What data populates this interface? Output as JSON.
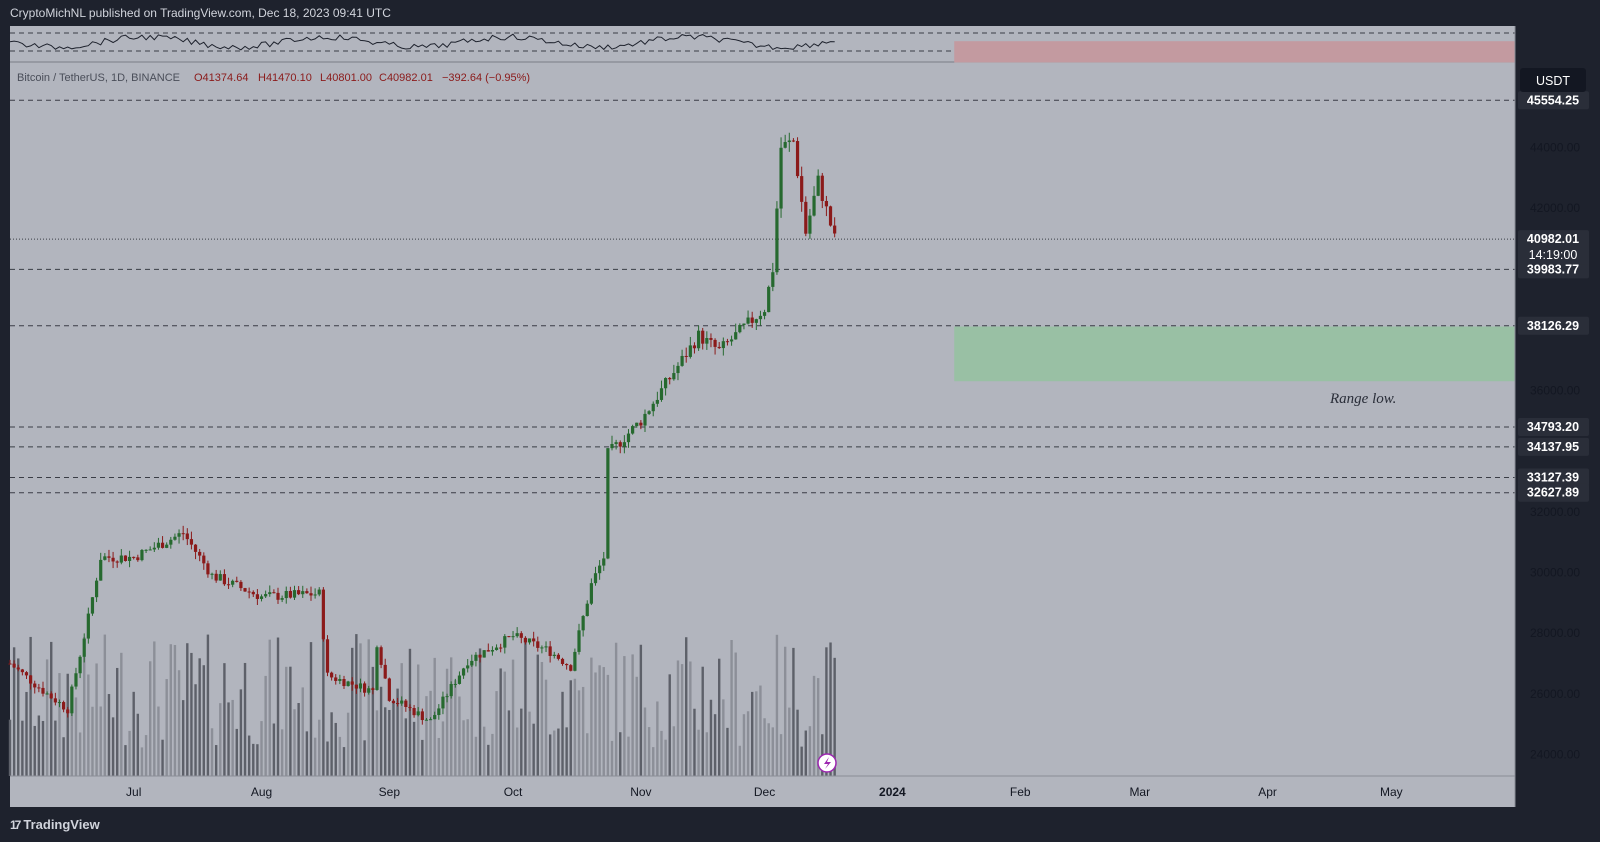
{
  "header": {
    "publish_line": "CryptoMichNL published on TradingView.com, Dec 18, 2023 09:41 UTC"
  },
  "footer": {
    "brand": "TradingView"
  },
  "symbol": {
    "name": "Bitcoin / TetherUS, 1D, BINANCE",
    "open": "O41374.64",
    "high": "H41470.10",
    "low": "L40801.00",
    "close": "C40982.01",
    "change": "−392.64 (−0.95%)"
  },
  "currency_button": "USDT",
  "annotation": "Range low.",
  "colors": {
    "background": "#b2b5be",
    "frame": "#1e222d",
    "up": "#26692f",
    "down": "#8b1a1a",
    "resistance_zone": "#c39aa0",
    "support_zone": "#99c0a4",
    "price_tag": "#2a2e39"
  },
  "chart_data": {
    "type": "candlestick",
    "ylim": [
      23000,
      48000
    ],
    "x_range": [
      "2023-06-01",
      "2024-05-31"
    ],
    "x_tick_labels": [
      {
        "label": "Jul",
        "date": "2023-07-01"
      },
      {
        "label": "Aug",
        "date": "2023-08-01"
      },
      {
        "label": "Sep",
        "date": "2023-09-01"
      },
      {
        "label": "Oct",
        "date": "2023-10-01"
      },
      {
        "label": "Nov",
        "date": "2023-11-01"
      },
      {
        "label": "Dec",
        "date": "2023-12-01"
      },
      {
        "label": "2024",
        "date": "2024-01-01"
      },
      {
        "label": "Feb",
        "date": "2024-02-01"
      },
      {
        "label": "Mar",
        "date": "2024-03-01"
      },
      {
        "label": "Apr",
        "date": "2024-04-01"
      },
      {
        "label": "May",
        "date": "2024-05-01"
      }
    ],
    "y_tick_labels": [
      "24000.00",
      "26000.00",
      "28000.00",
      "30000.00",
      "32000.00",
      "36000.00",
      "42000.00",
      "44000.00"
    ],
    "levels": [
      {
        "value": 45554.25,
        "label": "45554.25"
      },
      {
        "value": 39983.77,
        "label": "39983.77"
      },
      {
        "value": 38126.29,
        "label": "38126.29"
      },
      {
        "value": 34793.2,
        "label": "34793.20"
      },
      {
        "value": 34137.95,
        "label": "34137.95"
      },
      {
        "value": 33127.39,
        "label": "33127.39"
      },
      {
        "value": 32627.89,
        "label": "32627.89"
      }
    ],
    "last_price": {
      "value": 40982.01,
      "label": "40982.01",
      "countdown": "14:19:00"
    },
    "zones": [
      {
        "kind": "resistance",
        "from": 46800,
        "to": 47500,
        "start": "2024-01-16",
        "end": "2024-05-31"
      },
      {
        "kind": "support",
        "from": 36300,
        "to": 38100,
        "start": "2024-01-16",
        "end": "2024-05-31"
      }
    ],
    "anchors": [
      {
        "date": "2023-06-01",
        "price": 27000
      },
      {
        "date": "2023-06-10",
        "price": 26000
      },
      {
        "date": "2023-06-15",
        "price": 25500
      },
      {
        "date": "2023-06-20",
        "price": 28500
      },
      {
        "date": "2023-06-23",
        "price": 30500
      },
      {
        "date": "2023-07-01",
        "price": 30500
      },
      {
        "date": "2023-07-13",
        "price": 31300
      },
      {
        "date": "2023-07-20",
        "price": 29900
      },
      {
        "date": "2023-08-01",
        "price": 29200
      },
      {
        "date": "2023-08-15",
        "price": 29300
      },
      {
        "date": "2023-08-17",
        "price": 26600
      },
      {
        "date": "2023-08-28",
        "price": 26100
      },
      {
        "date": "2023-08-29",
        "price": 27700
      },
      {
        "date": "2023-09-01",
        "price": 25900
      },
      {
        "date": "2023-09-11",
        "price": 25100
      },
      {
        "date": "2023-09-20",
        "price": 27100
      },
      {
        "date": "2023-10-01",
        "price": 27900
      },
      {
        "date": "2023-10-10",
        "price": 27400
      },
      {
        "date": "2023-10-15",
        "price": 26900
      },
      {
        "date": "2023-10-20",
        "price": 29600
      },
      {
        "date": "2023-10-23",
        "price": 30500
      },
      {
        "date": "2023-10-24",
        "price": 33900
      },
      {
        "date": "2023-11-01",
        "price": 35000
      },
      {
        "date": "2023-11-09",
        "price": 36600
      },
      {
        "date": "2023-11-15",
        "price": 37800
      },
      {
        "date": "2023-11-20",
        "price": 37300
      },
      {
        "date": "2023-12-01",
        "price": 38700
      },
      {
        "date": "2023-12-03",
        "price": 40000
      },
      {
        "date": "2023-12-05",
        "price": 44000
      },
      {
        "date": "2023-12-08",
        "price": 44200
      },
      {
        "date": "2023-12-11",
        "price": 41200
      },
      {
        "date": "2023-12-14",
        "price": 42900
      },
      {
        "date": "2023-12-18",
        "price": 40982
      }
    ],
    "volume_range": [
      0,
      1
    ]
  }
}
